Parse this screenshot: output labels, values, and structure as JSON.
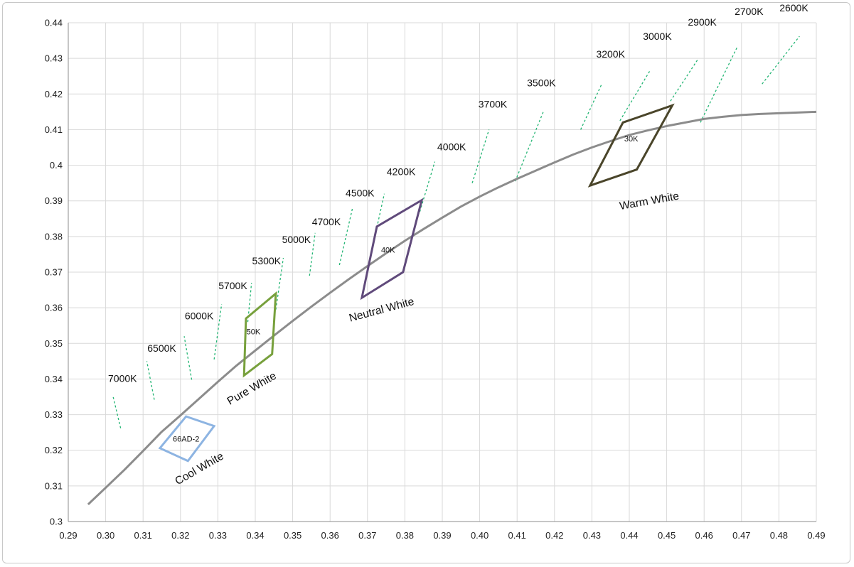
{
  "chart_data": {
    "type": "line",
    "title": "",
    "xlabel": "",
    "ylabel": "",
    "xlim": [
      0.29,
      0.49
    ],
    "ylim": [
      0.3,
      0.44
    ],
    "grid": true,
    "x_ticks": [
      "0.29",
      "0.30",
      "0.31",
      "0.32",
      "0.33",
      "0.34",
      "0.35",
      "0.36",
      "0.37",
      "0.38",
      "0.39",
      "0.40",
      "0.41",
      "0.42",
      "0.43",
      "0.44",
      "0.45",
      "0.46",
      "0.47",
      "0.48",
      "0.49"
    ],
    "y_ticks": [
      "0.3",
      "0.31",
      "0.32",
      "0.33",
      "0.34",
      "0.35",
      "0.36",
      "0.37",
      "0.38",
      "0.39",
      "0.4",
      "0.41",
      "0.42",
      "0.43",
      "0.44"
    ],
    "colors": {
      "locus": "#8c8c8c",
      "isotherm": "#22b573",
      "cool_white": "#8db4e2",
      "pure_white": "#77a03c",
      "neutral_white": "#604a7b",
      "warm_white": "#4a452a",
      "grid": "#d9d9d9"
    },
    "locus": [
      [
        0.2953,
        0.3048
      ],
      [
        0.3,
        0.3095
      ],
      [
        0.305,
        0.3145
      ],
      [
        0.31,
        0.3198
      ],
      [
        0.315,
        0.3252
      ],
      [
        0.32,
        0.3298
      ],
      [
        0.325,
        0.3345
      ],
      [
        0.33,
        0.3392
      ],
      [
        0.335,
        0.3438
      ],
      [
        0.34,
        0.348
      ],
      [
        0.345,
        0.3522
      ],
      [
        0.35,
        0.3563
      ],
      [
        0.355,
        0.3603
      ],
      [
        0.36,
        0.3642
      ],
      [
        0.365,
        0.368
      ],
      [
        0.37,
        0.3717
      ],
      [
        0.375,
        0.3753
      ],
      [
        0.38,
        0.3788
      ],
      [
        0.385,
        0.3821
      ],
      [
        0.39,
        0.3853
      ],
      [
        0.395,
        0.3884
      ],
      [
        0.4,
        0.3912
      ],
      [
        0.405,
        0.3938
      ],
      [
        0.41,
        0.3962
      ],
      [
        0.415,
        0.3985
      ],
      [
        0.42,
        0.4008
      ],
      [
        0.425,
        0.403
      ],
      [
        0.43,
        0.405
      ],
      [
        0.435,
        0.4068
      ],
      [
        0.44,
        0.4085
      ],
      [
        0.445,
        0.4098
      ],
      [
        0.45,
        0.411
      ],
      [
        0.455,
        0.412
      ],
      [
        0.46,
        0.413
      ],
      [
        0.465,
        0.4136
      ],
      [
        0.47,
        0.4141
      ],
      [
        0.475,
        0.4144
      ],
      [
        0.48,
        0.4146
      ],
      [
        0.485,
        0.4148
      ],
      [
        0.49,
        0.415
      ]
    ],
    "isotherms": [
      {
        "label": "7000K",
        "label_pos": [
          0.3045,
          0.3392
        ],
        "line": [
          [
            0.304,
            0.3262
          ],
          [
            0.302,
            0.335
          ]
        ]
      },
      {
        "label": "6500K",
        "label_pos": [
          0.315,
          0.3477
        ],
        "line": [
          [
            0.313,
            0.3342
          ],
          [
            0.311,
            0.345
          ]
        ]
      },
      {
        "label": "6000K",
        "label_pos": [
          0.325,
          0.3567
        ],
        "line": [
          [
            0.323,
            0.3398
          ],
          [
            0.321,
            0.352
          ]
        ]
      },
      {
        "label": "5700K",
        "label_pos": [
          0.334,
          0.3652
        ],
        "line": [
          [
            0.329,
            0.3455
          ],
          [
            0.331,
            0.361
          ]
        ]
      },
      {
        "label": "5300K",
        "label_pos": [
          0.343,
          0.3722
        ],
        "line": [
          [
            0.338,
            0.356
          ],
          [
            0.339,
            0.367
          ]
        ]
      },
      {
        "label": "5000K",
        "label_pos": [
          0.351,
          0.3782
        ],
        "line": [
          [
            0.3455,
            0.3595
          ],
          [
            0.3475,
            0.374
          ]
        ]
      },
      {
        "label": "4700K",
        "label_pos": [
          0.359,
          0.3832
        ],
        "line": [
          [
            0.3545,
            0.369
          ],
          [
            0.356,
            0.381
          ]
        ]
      },
      {
        "label": "4500K",
        "label_pos": [
          0.368,
          0.3912
        ],
        "line": [
          [
            0.3625,
            0.372
          ],
          [
            0.366,
            0.388
          ]
        ]
      },
      {
        "label": "4200K",
        "label_pos": [
          0.379,
          0.3972
        ],
        "line": [
          [
            0.3725,
            0.3825
          ],
          [
            0.3745,
            0.392
          ]
        ]
      },
      {
        "label": "4000K",
        "label_pos": [
          0.3925,
          0.4042
        ],
        "line": [
          [
            0.384,
            0.387
          ],
          [
            0.388,
            0.401
          ]
        ]
      },
      {
        "label": "3700K",
        "label_pos": [
          0.4035,
          0.4162
        ],
        "line": [
          [
            0.398,
            0.395
          ],
          [
            0.4025,
            0.41
          ]
        ]
      },
      {
        "label": "3500K",
        "label_pos": [
          0.4165,
          0.4222
        ],
        "line": [
          [
            0.4095,
            0.3955
          ],
          [
            0.417,
            0.415
          ]
        ]
      },
      {
        "label": "3200K",
        "label_pos": [
          0.435,
          0.4302
        ],
        "line": [
          [
            0.427,
            0.41
          ],
          [
            0.4325,
            0.4225
          ]
        ]
      },
      {
        "label": "3000K",
        "label_pos": [
          0.4475,
          0.4352
        ],
        "line": [
          [
            0.4375,
            0.4125
          ],
          [
            0.4455,
            0.4265
          ]
        ]
      },
      {
        "label": "2900K",
        "label_pos": [
          0.4595,
          0.4392
        ],
        "line": [
          [
            0.451,
            0.418
          ],
          [
            0.4585,
            0.43
          ]
        ]
      },
      {
        "label": "2700K",
        "label_pos": [
          0.472,
          0.4422
        ],
        "line": [
          [
            0.459,
            0.412
          ],
          [
            0.469,
            0.4335
          ]
        ]
      },
      {
        "label": "2600K",
        "label_pos": [
          0.484,
          0.4432
        ],
        "line": [
          [
            0.4755,
            0.4228
          ],
          [
            0.4855,
            0.4362
          ]
        ]
      }
    ],
    "regions": [
      {
        "name": "Cool White",
        "bin": "66AD-2",
        "color": "#8db4e2",
        "polygon": [
          [
            0.3145,
            0.3206
          ],
          [
            0.3215,
            0.3295
          ],
          [
            0.329,
            0.3268
          ],
          [
            0.322,
            0.317
          ]
        ],
        "bin_pos": [
          0.3215,
          0.3232
        ],
        "name_pos": [
          0.3255,
          0.314
        ],
        "name_rot": -30
      },
      {
        "name": "Pure White",
        "bin": "50K",
        "color": "#77a03c",
        "polygon": [
          [
            0.337,
            0.341
          ],
          [
            0.3375,
            0.357
          ],
          [
            0.3455,
            0.364
          ],
          [
            0.3445,
            0.347
          ]
        ],
        "bin_pos": [
          0.3395,
          0.3533
        ],
        "name_pos": [
          0.3395,
          0.3365
        ],
        "name_rot": -30
      },
      {
        "name": "Neutral White",
        "bin": "40K",
        "color": "#604a7b",
        "polygon": [
          [
            0.3685,
            0.3628
          ],
          [
            0.3725,
            0.3828
          ],
          [
            0.3845,
            0.3902
          ],
          [
            0.3795,
            0.37
          ]
        ],
        "bin_pos": [
          0.3755,
          0.3763
        ],
        "name_pos": [
          0.374,
          0.3585
        ],
        "name_rot": -15
      },
      {
        "name": "Warm White",
        "bin": "30K",
        "color": "#4a452a",
        "polygon": [
          [
            0.4295,
            0.3943
          ],
          [
            0.4383,
            0.412
          ],
          [
            0.4515,
            0.4168
          ],
          [
            0.442,
            0.3988
          ]
        ],
        "bin_pos": [
          0.4405,
          0.4075
        ],
        "name_pos": [
          0.4455,
          0.389
        ],
        "name_rot": -10
      }
    ]
  }
}
